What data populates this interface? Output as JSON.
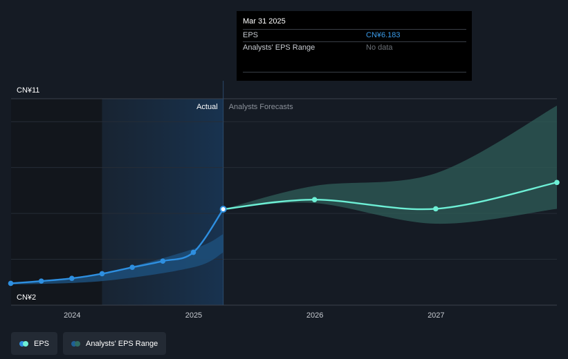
{
  "tooltip": {
    "date": "Mar 31 2025",
    "rows": [
      {
        "label": "EPS",
        "value": "CN¥6.183"
      },
      {
        "label": "Analysts' EPS Range",
        "value": "No data"
      }
    ]
  },
  "legend": [
    {
      "label": "EPS",
      "colors": [
        "#2e8fe0",
        "#6ef0d6"
      ]
    },
    {
      "label": "Analysts' EPS Range",
      "colors": [
        "#1f5f95",
        "#2f6d63"
      ]
    }
  ],
  "colors": {
    "eps_actual": "#2e8fe0",
    "eps_forecast": "#6ef0d6",
    "range_actual": "#1d4f7a",
    "range_forecast": "#2f5e58",
    "background": "#151b24"
  },
  "chart_data": {
    "type": "line",
    "y_top_label": "CN¥11",
    "y_bottom_label": "CN¥2",
    "ylim": [
      2,
      11
    ],
    "xlim": [
      "2023-07-01",
      "2027-12-31"
    ],
    "x_ticks": [
      {
        "date": "2024-01-01",
        "label": "2024"
      },
      {
        "date": "2025-01-01",
        "label": "2025"
      },
      {
        "date": "2026-01-01",
        "label": "2026"
      },
      {
        "date": "2027-01-01",
        "label": "2027"
      }
    ],
    "gridlines": [
      2,
      4,
      6,
      8,
      10,
      11
    ],
    "grid": true,
    "divider_date": "2025-03-31",
    "actual_label": "Actual",
    "forecast_label": "Analysts Forecasts",
    "highlight_start": "2024-03-31",
    "past_shade_start": "2023-07-01",
    "series": [
      {
        "name": "EPS",
        "segment": "actual",
        "points": [
          {
            "x": "2023-06-30",
            "y": 2.95
          },
          {
            "x": "2023-09-30",
            "y": 3.05
          },
          {
            "x": "2023-12-31",
            "y": 3.17
          },
          {
            "x": "2024-03-31",
            "y": 3.37
          },
          {
            "x": "2024-06-30",
            "y": 3.65
          },
          {
            "x": "2024-09-30",
            "y": 3.92
          },
          {
            "x": "2024-12-31",
            "y": 4.3
          },
          {
            "x": "2025-03-31",
            "y": 6.183
          }
        ]
      },
      {
        "name": "EPS",
        "segment": "forecast",
        "points": [
          {
            "x": "2025-03-31",
            "y": 6.183
          },
          {
            "x": "2025-12-31",
            "y": 6.6
          },
          {
            "x": "2026-12-31",
            "y": 6.2
          },
          {
            "x": "2027-12-31",
            "y": 7.35
          }
        ]
      }
    ],
    "range_actual": {
      "upper": [
        {
          "x": "2023-06-30",
          "y": 2.96
        },
        {
          "x": "2024-03-31",
          "y": 3.4
        },
        {
          "x": "2024-12-31",
          "y": 4.45
        },
        {
          "x": "2025-03-31",
          "y": 5.1
        }
      ],
      "lower": [
        {
          "x": "2023-06-30",
          "y": 2.9
        },
        {
          "x": "2024-03-31",
          "y": 3.05
        },
        {
          "x": "2024-12-31",
          "y": 3.65
        },
        {
          "x": "2025-03-31",
          "y": 4.3
        }
      ]
    },
    "range_forecast": {
      "upper": [
        {
          "x": "2025-03-31",
          "y": 6.183
        },
        {
          "x": "2025-12-31",
          "y": 7.2
        },
        {
          "x": "2026-12-31",
          "y": 7.75
        },
        {
          "x": "2027-12-31",
          "y": 10.7
        }
      ],
      "lower": [
        {
          "x": "2025-03-31",
          "y": 6.183
        },
        {
          "x": "2025-12-31",
          "y": 6.45
        },
        {
          "x": "2026-12-31",
          "y": 5.55
        },
        {
          "x": "2027-12-31",
          "y": 6.2
        }
      ]
    }
  }
}
